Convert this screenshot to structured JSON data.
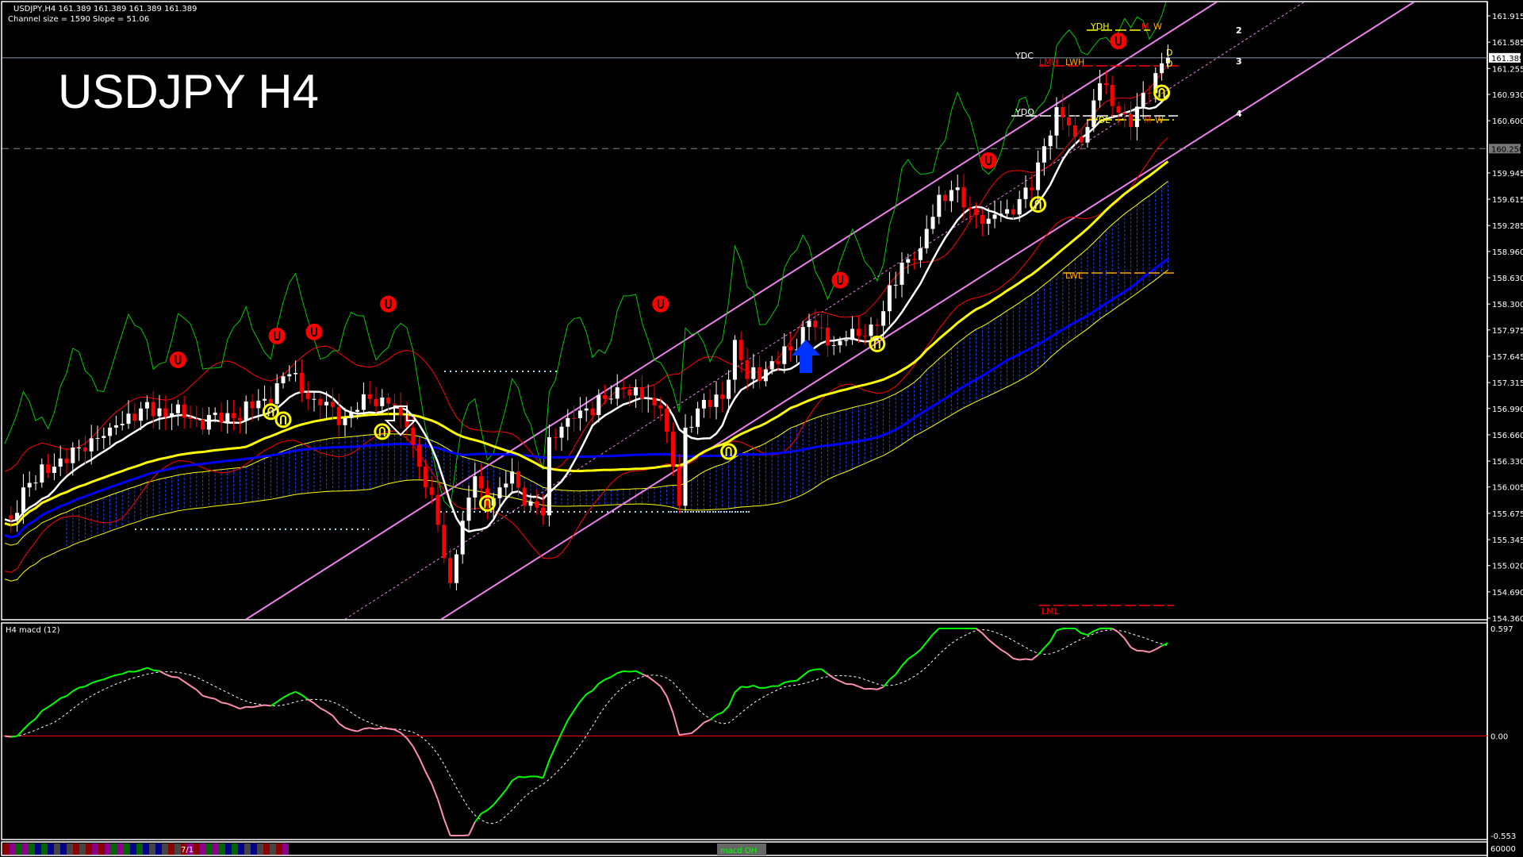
{
  "header": {
    "line1": "USDJPY,H4  161.389 161.389 161.389 161.389",
    "line2": "Channel size = 1590 Slope = 51.06"
  },
  "title": "USDJPY H4",
  "macd_panel": {
    "label": "H4  macd (12)"
  },
  "bottom_bar": {
    "period_label": "7/1",
    "tab_label": "macd OH"
  },
  "colors": {
    "background": "#000000",
    "bull_candle": "#ffffff",
    "bear_candle": "#ff0000",
    "channel": "#ee82ee",
    "ma_fast": "#ffffff",
    "ma_mid": "#ffff00",
    "ma_slow": "#0000ff",
    "cloud": "#0000ff",
    "macd_up": "#00ff00",
    "macd_down": "#ff8fb0",
    "zero_line": "#ff0000"
  },
  "levels": {
    "current_price": "161.389",
    "marked_price": "160.250",
    "labels": [
      {
        "text": "YDH",
        "color": "#ffff00"
      },
      {
        "text": "M",
        "color": "#ff0000"
      },
      {
        "text": "W",
        "color": "#ffa500"
      },
      {
        "text": "YDC",
        "color": "#ffffff"
      },
      {
        "text": "LMH",
        "color": "#ff0000"
      },
      {
        "text": "LWH",
        "color": "#ffa500"
      },
      {
        "text": "YDO",
        "color": "#ffffff"
      },
      {
        "text": "YDL",
        "color": "#ffff00"
      },
      {
        "text": "M",
        "color": "#ff0000"
      },
      {
        "text": "W",
        "color": "#ffa500"
      },
      {
        "text": "D",
        "color": "#ffff00"
      },
      {
        "text": "D",
        "color": "#ffff00"
      },
      {
        "text": "LWL",
        "color": "#ffa500"
      },
      {
        "text": "LML",
        "color": "#ff0000"
      },
      {
        "text": "2",
        "color": "#ffffff"
      },
      {
        "text": "3",
        "color": "#ffffff"
      },
      {
        "text": "4",
        "color": "#ffffff"
      }
    ]
  },
  "chart_data": {
    "type": "candlestick",
    "symbol": "USDJPY",
    "timeframe": "H4",
    "ylim": [
      154.36,
      161.915
    ],
    "y_ticks": [
      "161.915",
      "161.585",
      "161.255",
      "160.930",
      "160.600",
      "159.945",
      "159.615",
      "159.285",
      "158.960",
      "158.630",
      "158.300",
      "157.975",
      "157.645",
      "157.315",
      "156.990",
      "156.660",
      "156.330",
      "156.005",
      "155.675",
      "155.345",
      "155.020",
      "154.690",
      "154.360"
    ],
    "last_close": 161.389,
    "price_keypoints": [
      [
        1,
        155.6
      ],
      [
        3,
        156.0
      ],
      [
        8,
        156.26
      ],
      [
        12,
        156.5
      ],
      [
        17,
        156.75
      ],
      [
        22,
        156.99
      ],
      [
        27,
        156.93
      ],
      [
        31,
        156.85
      ],
      [
        37,
        156.87
      ],
      [
        42,
        157.11
      ],
      [
        46,
        157.42
      ],
      [
        50,
        157.11
      ],
      [
        55,
        156.87
      ],
      [
        59,
        157.11
      ],
      [
        62,
        157.05
      ],
      [
        65,
        156.75
      ],
      [
        67,
        156.26
      ],
      [
        70,
        155.53
      ],
      [
        72,
        154.8
      ],
      [
        73,
        155.16
      ],
      [
        76,
        156.14
      ],
      [
        78,
        155.77
      ],
      [
        80,
        156.0
      ],
      [
        82,
        156.2
      ],
      [
        84,
        155.77
      ],
      [
        87,
        155.65
      ],
      [
        88,
        156.63
      ],
      [
        91,
        156.87
      ],
      [
        94,
        156.99
      ],
      [
        97,
        157.11
      ],
      [
        100,
        157.23
      ],
      [
        103,
        157.11
      ],
      [
        106,
        156.99
      ],
      [
        108,
        156.26
      ],
      [
        109,
        155.77
      ],
      [
        110,
        156.75
      ],
      [
        112,
        156.99
      ],
      [
        116,
        157.11
      ],
      [
        118,
        157.85
      ],
      [
        120,
        157.36
      ],
      [
        123,
        157.48
      ],
      [
        127,
        157.72
      ],
      [
        130,
        158.09
      ],
      [
        133,
        157.78
      ],
      [
        136,
        157.85
      ],
      [
        139,
        157.9
      ],
      [
        142,
        158.21
      ],
      [
        145,
        158.82
      ],
      [
        148,
        159.0
      ],
      [
        151,
        159.67
      ],
      [
        153,
        159.73
      ],
      [
        156,
        159.49
      ],
      [
        159,
        159.37
      ],
      [
        162,
        159.49
      ],
      [
        166,
        159.73
      ],
      [
        168,
        160.28
      ],
      [
        170,
        160.77
      ],
      [
        173,
        160.4
      ],
      [
        175,
        160.52
      ],
      [
        177,
        161.07
      ],
      [
        180,
        160.7
      ],
      [
        182,
        160.52
      ],
      [
        184,
        160.95
      ],
      [
        187,
        161.32
      ],
      [
        188,
        161.389
      ]
    ],
    "trend_channel": [
      {
        "name": "upper",
        "start": [
          0,
          152.42
        ],
        "end": [
          188,
          161.7
        ]
      },
      {
        "name": "middle",
        "start": [
          0,
          151.6
        ],
        "end": [
          188,
          160.99
        ],
        "dashed": true
      },
      {
        "name": "lower",
        "start": [
          0,
          150.87
        ],
        "end": [
          188,
          160.13
        ]
      }
    ],
    "signals": [
      {
        "bar": 28,
        "price": 157.6,
        "type": "sell",
        "color": "#ff0000"
      },
      {
        "bar": 44,
        "price": 157.9,
        "type": "sell",
        "color": "#ff0000"
      },
      {
        "bar": 50,
        "price": 157.95,
        "type": "sell",
        "color": "#ff0000"
      },
      {
        "bar": 62,
        "price": 158.3,
        "type": "sell",
        "color": "#ff0000"
      },
      {
        "bar": 106,
        "price": 158.3,
        "type": "sell",
        "color": "#ff0000"
      },
      {
        "bar": 135,
        "price": 158.6,
        "type": "sell",
        "color": "#ff0000"
      },
      {
        "bar": 159,
        "price": 160.1,
        "type": "sell",
        "color": "#ff0000"
      },
      {
        "bar": 180,
        "price": 161.6,
        "type": "sell",
        "color": "#ff0000"
      },
      {
        "bar": 43,
        "price": 156.95,
        "type": "buy",
        "color": "#ffff00"
      },
      {
        "bar": 45,
        "price": 156.85,
        "type": "buy",
        "color": "#ffff00"
      },
      {
        "bar": 61,
        "price": 156.7,
        "type": "buy",
        "color": "#ffff00"
      },
      {
        "bar": 78,
        "price": 155.8,
        "type": "buy",
        "color": "#ffff00"
      },
      {
        "bar": 117,
        "price": 156.45,
        "type": "buy",
        "color": "#ffff00"
      },
      {
        "bar": 141,
        "price": 157.8,
        "type": "buy",
        "color": "#ffff00"
      },
      {
        "bar": 167,
        "price": 159.55,
        "type": "buy",
        "color": "#ffff00"
      },
      {
        "bar": 187,
        "price": 160.95,
        "type": "buy",
        "color": "#ffff00"
      }
    ],
    "macd": {
      "ylim": [
        -0.553,
        0.597
      ],
      "y_ticks": [
        "0.597",
        "0.00",
        "-0.553"
      ],
      "volume_label": "60000"
    }
  }
}
